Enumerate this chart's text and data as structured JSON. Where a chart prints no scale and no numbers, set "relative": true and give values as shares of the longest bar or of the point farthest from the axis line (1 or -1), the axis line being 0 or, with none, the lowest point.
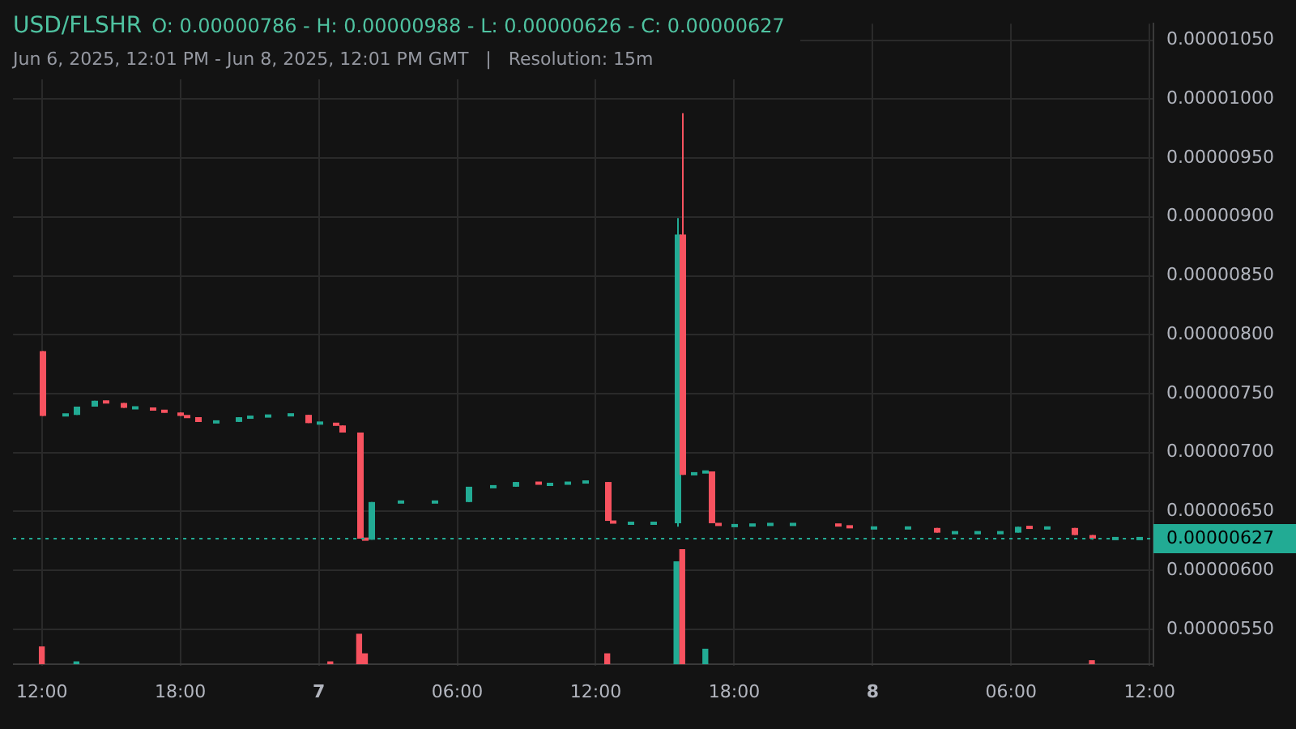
{
  "chart_data": [
    {
      "type": "candlestick",
      "title": "USD/FLSHR",
      "subtitle": "Jun 6, 2025, 12:01 PM - Jun 8, 2025, 12:01 PM GMT   |   Resolution: 15m",
      "annotations": [
        "O: 0.00000786 - H: 0.00000988 - L: 0.00000626 - C: 0.00000627"
      ],
      "x": [
        "2025-06-06T12:00",
        "2025-06-06T13:00",
        "2025-06-06T13:30",
        "2025-06-06T14:15",
        "2025-06-06T14:45",
        "2025-06-06T15:30",
        "2025-06-06T16:00",
        "2025-06-06T16:45",
        "2025-06-06T17:15",
        "2025-06-06T18:00",
        "2025-06-06T18:15",
        "2025-06-06T18:45",
        "2025-06-06T19:30",
        "2025-06-06T20:30",
        "2025-06-06T21:00",
        "2025-06-06T21:45",
        "2025-06-06T22:45",
        "2025-06-06T23:30",
        "2025-06-07T00:00",
        "2025-06-07T00:45",
        "2025-06-07T01:00",
        "2025-06-07T01:45",
        "2025-06-07T02:00",
        "2025-06-07T02:15",
        "2025-06-07T03:30",
        "2025-06-07T05:00",
        "2025-06-07T06:30",
        "2025-06-07T07:30",
        "2025-06-07T08:30",
        "2025-06-07T09:30",
        "2025-06-07T10:00",
        "2025-06-07T10:45",
        "2025-06-07T11:30",
        "2025-06-07T12:30",
        "2025-06-07T12:45",
        "2025-06-07T13:30",
        "2025-06-07T14:30",
        "2025-06-07T15:30",
        "2025-06-07T15:45",
        "2025-06-07T16:15",
        "2025-06-07T16:45",
        "2025-06-07T17:00",
        "2025-06-07T17:15",
        "2025-06-07T18:00",
        "2025-06-07T18:45",
        "2025-06-07T19:30",
        "2025-06-07T20:30",
        "2025-06-07T22:30",
        "2025-06-07T23:00",
        "2025-06-08T00:00",
        "2025-06-08T01:30",
        "2025-06-08T02:45",
        "2025-06-08T03:30",
        "2025-06-08T04:30",
        "2025-06-08T05:30",
        "2025-06-08T06:15",
        "2025-06-08T06:45",
        "2025-06-08T07:30",
        "2025-06-08T08:45",
        "2025-06-08T09:30",
        "2025-06-08T10:30",
        "2025-06-08T11:30"
      ],
      "ohlc": [
        [
          7.86e-06,
          7.86e-06,
          7.31e-06,
          7.31e-06
        ],
        [
          7.32e-06,
          7.32e-06,
          7.32e-06,
          7.32e-06
        ],
        [
          7.32e-06,
          7.39e-06,
          7.32e-06,
          7.39e-06
        ],
        [
          7.39e-06,
          7.44e-06,
          7.39e-06,
          7.44e-06
        ],
        [
          7.44e-06,
          7.44e-06,
          7.42e-06,
          7.42e-06
        ],
        [
          7.42e-06,
          7.42e-06,
          7.38e-06,
          7.38e-06
        ],
        [
          7.38e-06,
          7.38e-06,
          7.38e-06,
          7.38e-06
        ],
        [
          7.38e-06,
          7.38e-06,
          7.36e-06,
          7.36e-06
        ],
        [
          7.36e-06,
          7.36e-06,
          7.34e-06,
          7.34e-06
        ],
        [
          7.34e-06,
          7.34e-06,
          7.31e-06,
          7.31e-06
        ],
        [
          7.31e-06,
          7.31e-06,
          7.3e-06,
          7.3e-06
        ],
        [
          7.3e-06,
          7.3e-06,
          7.26e-06,
          7.26e-06
        ],
        [
          7.26e-06,
          7.26e-06,
          7.26e-06,
          7.26e-06
        ],
        [
          7.26e-06,
          7.3e-06,
          7.26e-06,
          7.3e-06
        ],
        [
          7.3e-06,
          7.3e-06,
          7.3e-06,
          7.3e-06
        ],
        [
          7.3e-06,
          7.32e-06,
          7.3e-06,
          7.32e-06
        ],
        [
          7.32e-06,
          7.32e-06,
          7.32e-06,
          7.32e-06
        ],
        [
          7.32e-06,
          7.32e-06,
          7.25e-06,
          7.25e-06
        ],
        [
          7.25e-06,
          7.25e-06,
          7.25e-06,
          7.25e-06
        ],
        [
          7.25e-06,
          7.25e-06,
          7.23e-06,
          7.23e-06
        ],
        [
          7.23e-06,
          7.23e-06,
          7.17e-06,
          7.17e-06
        ],
        [
          7.17e-06,
          7.17e-06,
          6.27e-06,
          6.27e-06
        ],
        [
          6.27e-06,
          6.27e-06,
          6.26e-06,
          6.26e-06
        ],
        [
          6.26e-06,
          6.58e-06,
          6.26e-06,
          6.58e-06
        ],
        [
          6.58e-06,
          6.58e-06,
          6.58e-06,
          6.58e-06
        ],
        [
          6.58e-06,
          6.58e-06,
          6.58e-06,
          6.58e-06
        ],
        [
          6.58e-06,
          6.71e-06,
          6.58e-06,
          6.71e-06
        ],
        [
          6.71e-06,
          6.71e-06,
          6.71e-06,
          6.71e-06
        ],
        [
          6.71e-06,
          6.75e-06,
          6.71e-06,
          6.75e-06
        ],
        [
          6.75e-06,
          6.75e-06,
          6.73e-06,
          6.73e-06
        ],
        [
          6.73e-06,
          6.73e-06,
          6.73e-06,
          6.73e-06
        ],
        [
          6.73e-06,
          6.75e-06,
          6.73e-06,
          6.75e-06
        ],
        [
          6.75e-06,
          6.75e-06,
          6.75e-06,
          6.75e-06
        ],
        [
          6.75e-06,
          6.75e-06,
          6.42e-06,
          6.42e-06
        ],
        [
          6.42e-06,
          6.42e-06,
          6.4e-06,
          6.4e-06
        ],
        [
          6.4e-06,
          6.4e-06,
          6.4e-06,
          6.4e-06
        ],
        [
          6.4e-06,
          6.4e-06,
          6.4e-06,
          6.4e-06
        ],
        [
          6.4e-06,
          8.99e-06,
          6.37e-06,
          8.85e-06
        ],
        [
          8.85e-06,
          9.88e-06,
          6.81e-06,
          6.81e-06
        ],
        [
          6.81e-06,
          6.83e-06,
          6.81e-06,
          6.83e-06
        ],
        [
          6.83e-06,
          6.84e-06,
          6.83e-06,
          6.84e-06
        ],
        [
          6.84e-06,
          6.84e-06,
          6.4e-06,
          6.4e-06
        ],
        [
          6.4e-06,
          6.4e-06,
          6.38e-06,
          6.38e-06
        ],
        [
          6.38e-06,
          6.38e-06,
          6.38e-06,
          6.38e-06
        ],
        [
          6.38e-06,
          6.39e-06,
          6.38e-06,
          6.39e-06
        ],
        [
          6.39e-06,
          6.39e-06,
          6.39e-06,
          6.39e-06
        ],
        [
          6.39e-06,
          6.39e-06,
          6.39e-06,
          6.39e-06
        ],
        [
          6.39e-06,
          6.39e-06,
          6.38e-06,
          6.38e-06
        ],
        [
          6.38e-06,
          6.38e-06,
          6.36e-06,
          6.36e-06
        ],
        [
          6.36e-06,
          6.36e-06,
          6.36e-06,
          6.36e-06
        ],
        [
          6.36e-06,
          6.36e-06,
          6.36e-06,
          6.36e-06
        ],
        [
          6.36e-06,
          6.36e-06,
          6.32e-06,
          6.32e-06
        ],
        [
          6.32e-06,
          6.32e-06,
          6.32e-06,
          6.32e-06
        ],
        [
          6.32e-06,
          6.32e-06,
          6.32e-06,
          6.32e-06
        ],
        [
          6.32e-06,
          6.32e-06,
          6.32e-06,
          6.32e-06
        ],
        [
          6.32e-06,
          6.37e-06,
          6.32e-06,
          6.37e-06
        ],
        [
          6.37e-06,
          6.37e-06,
          6.36e-06,
          6.36e-06
        ],
        [
          6.36e-06,
          6.36e-06,
          6.36e-06,
          6.36e-06
        ],
        [
          6.36e-06,
          6.36e-06,
          6.3e-06,
          6.3e-06
        ],
        [
          6.3e-06,
          6.3e-06,
          6.26e-06,
          6.27e-06
        ],
        [
          6.27e-06,
          6.27e-06,
          6.27e-06,
          6.27e-06
        ],
        [
          6.27e-06,
          6.27e-06,
          6.27e-06,
          6.27e-06
        ]
      ],
      "colors": [
        "#f7525f",
        "#22ab94",
        "#22ab94",
        "#22ab94",
        "#f7525f",
        "#f7525f",
        "#22ab94",
        "#f7525f",
        "#f7525f",
        "#f7525f",
        "#f7525f",
        "#f7525f",
        "#22ab94",
        "#22ab94",
        "#22ab94",
        "#22ab94",
        "#22ab94",
        "#f7525f",
        "#22ab94",
        "#f7525f",
        "#f7525f",
        "#f7525f",
        "#f7525f",
        "#22ab94",
        "#22ab94",
        "#22ab94",
        "#22ab94",
        "#22ab94",
        "#22ab94",
        "#f7525f",
        "#22ab94",
        "#22ab94",
        "#22ab94",
        "#f7525f",
        "#f7525f",
        "#22ab94",
        "#22ab94",
        "#22ab94",
        "#f7525f",
        "#22ab94",
        "#22ab94",
        "#f7525f",
        "#f7525f",
        "#22ab94",
        "#22ab94",
        "#22ab94",
        "#22ab94",
        "#f7525f",
        "#f7525f",
        "#22ab94",
        "#22ab94",
        "#f7525f",
        "#22ab94",
        "#22ab94",
        "#22ab94",
        "#22ab94",
        "#f7525f",
        "#22ab94",
        "#f7525f",
        "#f7525f",
        "#22ab94",
        "#22ab94"
      ],
      "xlim": [
        "2025-06-06T10:45",
        "2025-06-08T12:10"
      ],
      "xticks": [
        {
          "value": "2025-06-06T12:00",
          "label": "12:00"
        },
        {
          "value": "2025-06-06T18:00",
          "label": "18:00"
        },
        {
          "value": "2025-06-07T00:00",
          "label": "7"
        },
        {
          "value": "2025-06-07T06:00",
          "label": "06:00"
        },
        {
          "value": "2025-06-07T12:00",
          "label": "12:00"
        },
        {
          "value": "2025-06-07T18:00",
          "label": "18:00"
        },
        {
          "value": "2025-06-08T00:00",
          "label": "8"
        },
        {
          "value": "2025-06-08T06:00",
          "label": "06:00"
        },
        {
          "value": "2025-06-08T12:00",
          "label": "12:00"
        }
      ],
      "ylim": [
        5.19e-06,
        1.064e-05
      ],
      "yticks": [
        {
          "value": 5.5e-06,
          "label": "0.00000550"
        },
        {
          "value": 6e-06,
          "label": "0.00000600"
        },
        {
          "value": 6.5e-06,
          "label": "0.00000650"
        },
        {
          "value": 7e-06,
          "label": "0.00000700"
        },
        {
          "value": 7.5e-06,
          "label": "0.00000750"
        },
        {
          "value": 8e-06,
          "label": "0.00000800"
        },
        {
          "value": 8.5e-06,
          "label": "0.00000850"
        },
        {
          "value": 9e-06,
          "label": "0.00000900"
        },
        {
          "value": 9.5e-06,
          "label": "0.00000950"
        },
        {
          "value": 1e-05,
          "label": "0.00001000"
        },
        {
          "value": 1.05e-05,
          "label": "0.00001050"
        }
      ],
      "ref_lines": [
        {
          "axis": "y",
          "value": 6.27e-06,
          "label": "0.00000627",
          "color": "#22ab94",
          "line_style": "dotted"
        }
      ],
      "grid": true
    },
    {
      "type": "bar",
      "relative": true,
      "tick_labels": false,
      "x": [
        "2025-06-06T12:00",
        "2025-06-06T13:30",
        "2025-06-07T00:30",
        "2025-06-07T01:45",
        "2025-06-07T02:00",
        "2025-06-07T12:30",
        "2025-06-07T15:30",
        "2025-06-07T15:45",
        "2025-06-07T16:45",
        "2025-06-08T09:30"
      ],
      "values": [
        0.15,
        0.02,
        0.02,
        0.26,
        0.09,
        0.09,
        0.89,
        1,
        0.13,
        0.03
      ],
      "colors": [
        "#f7525f",
        "#22ab94",
        "#f7525f",
        "#f7525f",
        "#f7525f",
        "#f7525f",
        "#22ab94",
        "#f7525f",
        "#22ab94",
        "#f7525f"
      ],
      "xlim": [
        "2025-06-06T10:45",
        "2025-06-08T12:10"
      ]
    }
  ]
}
